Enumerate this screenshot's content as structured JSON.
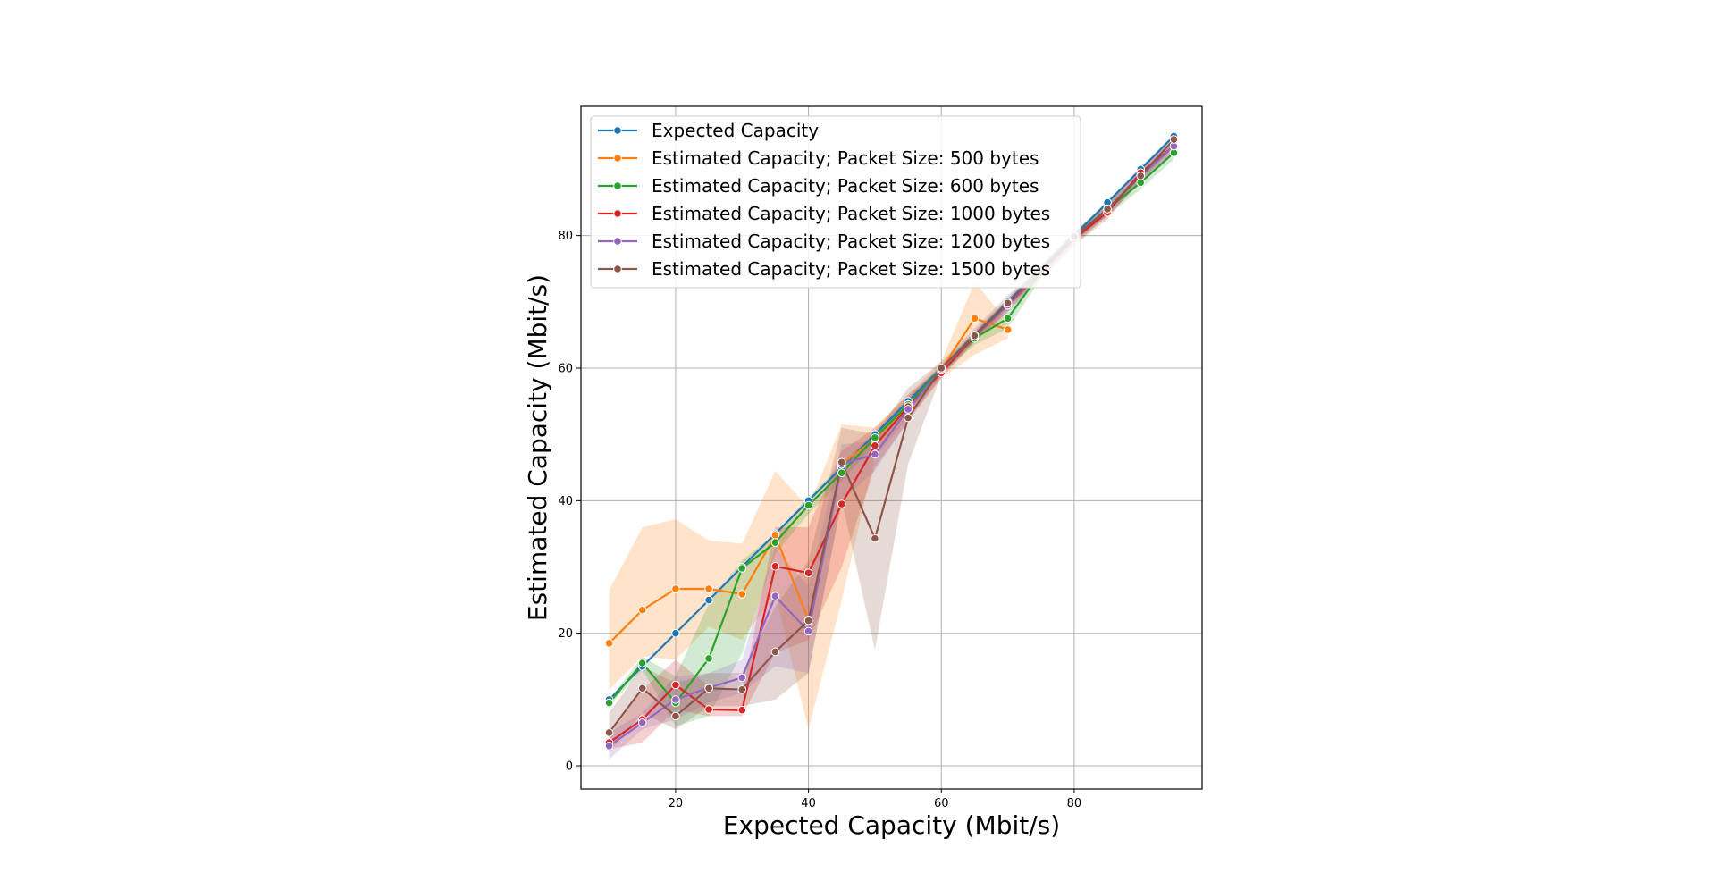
{
  "chart_data": {
    "type": "line",
    "xlabel": "Expected Capacity (Mbit/s)",
    "ylabel": "Estimated Capacity (Mbit/s)",
    "xlim": [
      5.75,
      99.25
    ],
    "ylim": [
      -3.5,
      99.5
    ],
    "xticks": [
      20,
      40,
      60,
      80
    ],
    "yticks": [
      0,
      20,
      40,
      60,
      80
    ],
    "grid": true,
    "legend_position": "upper-left",
    "series": [
      {
        "name": "Expected Capacity",
        "color": "#1f77b4",
        "x": [
          10,
          15,
          20,
          25,
          30,
          35,
          40,
          45,
          50,
          55,
          60,
          65,
          70,
          75,
          80,
          85,
          90,
          95
        ],
        "y": [
          10,
          15,
          20,
          25,
          30,
          35,
          40,
          45,
          50,
          55,
          60,
          65,
          70,
          75,
          80,
          85,
          90,
          95
        ],
        "lower": null,
        "upper": null
      },
      {
        "name": "Estimated Capacity; Packet Size: 500 bytes",
        "color": "#ff7f0e",
        "x": [
          10,
          15,
          20,
          25,
          30,
          35,
          40,
          45,
          50,
          55,
          60,
          65,
          70
        ],
        "y": [
          18.5,
          23.5,
          26.7,
          26.7,
          25.9,
          34.8,
          22.0,
          45.5,
          49.3,
          54.5,
          59.8,
          67.5,
          65.8
        ],
        "lower": [
          11.5,
          16.5,
          16.0,
          21.0,
          19.0,
          26.0,
          5.5,
          25.0,
          46.5,
          52.5,
          58.5,
          62.0,
          64.5
        ],
        "upper": [
          26.5,
          36.0,
          37.2,
          34.0,
          33.5,
          44.5,
          39.0,
          51.5,
          51.0,
          56.0,
          61.0,
          73.0,
          67.0
        ]
      },
      {
        "name": "Estimated Capacity; Packet Size: 600 bytes",
        "color": "#2ca02c",
        "x": [
          10,
          15,
          20,
          25,
          30,
          35,
          40,
          45,
          50,
          55,
          60,
          65,
          70,
          75,
          80,
          85,
          90,
          95
        ],
        "y": [
          9.5,
          15.5,
          9.5,
          16.2,
          29.8,
          33.7,
          39.3,
          44.2,
          49.5,
          54.5,
          59.8,
          64.5,
          67.5,
          74.5,
          79.5,
          84.0,
          88.0,
          92.5
        ],
        "lower": [
          9.0,
          14.5,
          6.0,
          7.5,
          17.0,
          32.0,
          38.0,
          43.0,
          48.5,
          53.5,
          59.0,
          63.5,
          66.0,
          73.5,
          78.5,
          83.0,
          87.0,
          91.5
        ],
        "upper": [
          10.0,
          16.5,
          13.5,
          24.5,
          31.0,
          35.0,
          40.5,
          45.5,
          50.5,
          55.5,
          60.5,
          65.5,
          69.0,
          75.5,
          80.5,
          85.0,
          89.0,
          93.5
        ]
      },
      {
        "name": "Estimated Capacity; Packet Size: 1000 bytes",
        "color": "#d62728",
        "x": [
          10,
          15,
          20,
          25,
          30,
          35,
          40,
          45,
          50,
          55,
          60,
          65,
          70,
          75,
          80,
          85,
          90,
          95
        ],
        "y": [
          3.5,
          7.0,
          12.2,
          8.5,
          8.4,
          30.1,
          29.1,
          39.5,
          48.3,
          54.2,
          59.3,
          64.8,
          69.5,
          74.5,
          79.5,
          83.5,
          89.5,
          93.5
        ],
        "lower": [
          2.5,
          3.5,
          8.5,
          7.5,
          7.5,
          17.0,
          19.0,
          30.0,
          45.0,
          52.0,
          58.5,
          64.0,
          68.5,
          73.5,
          78.5,
          82.5,
          88.5,
          92.5
        ],
        "upper": [
          4.5,
          11.5,
          16.0,
          12.0,
          11.0,
          36.0,
          36.0,
          47.5,
          51.0,
          56.0,
          60.0,
          65.5,
          70.5,
          75.5,
          80.5,
          84.5,
          90.5,
          94.5
        ]
      },
      {
        "name": "Estimated Capacity; Packet Size: 1200 bytes",
        "color": "#9467bd",
        "x": [
          10,
          15,
          20,
          25,
          30,
          35,
          40,
          45,
          50,
          55,
          60,
          65,
          70,
          75,
          80,
          85,
          90,
          95
        ],
        "y": [
          3.0,
          6.5,
          10.0,
          11.8,
          13.3,
          25.6,
          20.3,
          45.5,
          47.0,
          53.8,
          59.8,
          64.9,
          69.5,
          74.8,
          79.8,
          84.0,
          89.0,
          93.5
        ],
        "lower": [
          1.0,
          5.5,
          7.0,
          9.5,
          11.0,
          15.0,
          14.0,
          40.0,
          44.5,
          52.0,
          59.0,
          64.0,
          68.5,
          74.0,
          79.0,
          83.0,
          88.0,
          92.5
        ],
        "upper": [
          5.0,
          8.0,
          13.5,
          14.0,
          16.0,
          33.0,
          27.0,
          48.5,
          49.0,
          55.5,
          60.5,
          65.5,
          70.5,
          75.5,
          80.5,
          85.0,
          90.0,
          94.5
        ]
      },
      {
        "name": "Estimated Capacity; Packet Size: 1500 bytes",
        "color": "#8c564b",
        "x": [
          10,
          15,
          20,
          25,
          30,
          35,
          40,
          45,
          50,
          55,
          60,
          65,
          70,
          75,
          80,
          85,
          90,
          95
        ],
        "y": [
          5.0,
          11.7,
          7.5,
          11.7,
          11.5,
          17.2,
          21.9,
          45.8,
          34.3,
          52.5,
          60.0,
          64.9,
          69.8,
          74.8,
          79.8,
          84.0,
          89.0,
          94.5
        ],
        "lower": [
          2.0,
          8.0,
          5.5,
          9.0,
          9.0,
          10.0,
          14.0,
          40.0,
          17.5,
          45.5,
          59.0,
          64.0,
          69.0,
          74.0,
          79.0,
          83.0,
          88.0,
          93.5
        ],
        "upper": [
          8.0,
          15.0,
          12.5,
          14.0,
          14.0,
          24.0,
          31.0,
          51.0,
          50.0,
          57.0,
          61.0,
          66.0,
          71.0,
          75.5,
          80.5,
          85.0,
          90.0,
          95.5
        ]
      }
    ]
  }
}
